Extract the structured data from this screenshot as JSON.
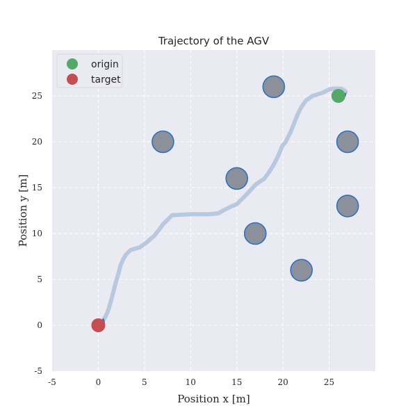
{
  "chart_data": {
    "type": "scatter",
    "title": "Trajectory of the AGV",
    "xlabel": "Position x [m]",
    "ylabel": "Position y [m]",
    "xlim": [
      -5,
      30
    ],
    "ylim": [
      -5,
      30
    ],
    "xticks": [
      -5,
      0,
      5,
      10,
      15,
      20,
      25
    ],
    "yticks": [
      -5,
      0,
      5,
      10,
      15,
      20,
      25
    ],
    "grid": true,
    "legend_position": "top-left",
    "legend": [
      {
        "label": "origin",
        "color": "#55a868"
      },
      {
        "label": "target",
        "color": "#c44e52"
      }
    ],
    "origin": {
      "x": 26,
      "y": 25
    },
    "target": {
      "x": 0,
      "y": 0
    },
    "obstacles": [
      {
        "x": 7,
        "y": 20
      },
      {
        "x": 19,
        "y": 26
      },
      {
        "x": 15,
        "y": 16
      },
      {
        "x": 17,
        "y": 10
      },
      {
        "x": 22,
        "y": 6
      },
      {
        "x": 27,
        "y": 20
      },
      {
        "x": 27,
        "y": 13
      }
    ],
    "trajectory": [
      [
        26.5,
        25.0
      ],
      [
        26.8,
        25.5
      ],
      [
        26.3,
        25.8
      ],
      [
        25.5,
        25.8
      ],
      [
        25.0,
        25.7
      ],
      [
        24.2,
        25.3
      ],
      [
        23.2,
        25.0
      ],
      [
        22.5,
        24.5
      ],
      [
        22.0,
        23.8
      ],
      [
        21.6,
        23.0
      ],
      [
        21.2,
        22.0
      ],
      [
        20.8,
        21.0
      ],
      [
        20.3,
        20.0
      ],
      [
        19.9,
        19.5
      ],
      [
        19.5,
        18.5
      ],
      [
        19.0,
        17.5
      ],
      [
        18.5,
        16.7
      ],
      [
        18.0,
        16.0
      ],
      [
        17.0,
        15.3
      ],
      [
        16.0,
        14.2
      ],
      [
        15.0,
        13.2
      ],
      [
        14.5,
        13.0
      ],
      [
        13.5,
        12.5
      ],
      [
        13.0,
        12.2
      ],
      [
        12.0,
        12.1
      ],
      [
        10.0,
        12.1
      ],
      [
        8.0,
        12.0
      ],
      [
        7.5,
        11.5
      ],
      [
        7.0,
        11.0
      ],
      [
        6.5,
        10.3
      ],
      [
        6.0,
        9.7
      ],
      [
        5.2,
        9.0
      ],
      [
        4.5,
        8.5
      ],
      [
        3.5,
        8.2
      ],
      [
        3.0,
        7.7
      ],
      [
        2.7,
        7.2
      ],
      [
        2.4,
        6.5
      ],
      [
        2.2,
        5.7
      ],
      [
        1.9,
        4.7
      ],
      [
        1.6,
        3.5
      ],
      [
        1.3,
        2.4
      ],
      [
        1.0,
        1.4
      ],
      [
        0.7,
        0.8
      ],
      [
        0.5,
        0.5
      ]
    ]
  }
}
